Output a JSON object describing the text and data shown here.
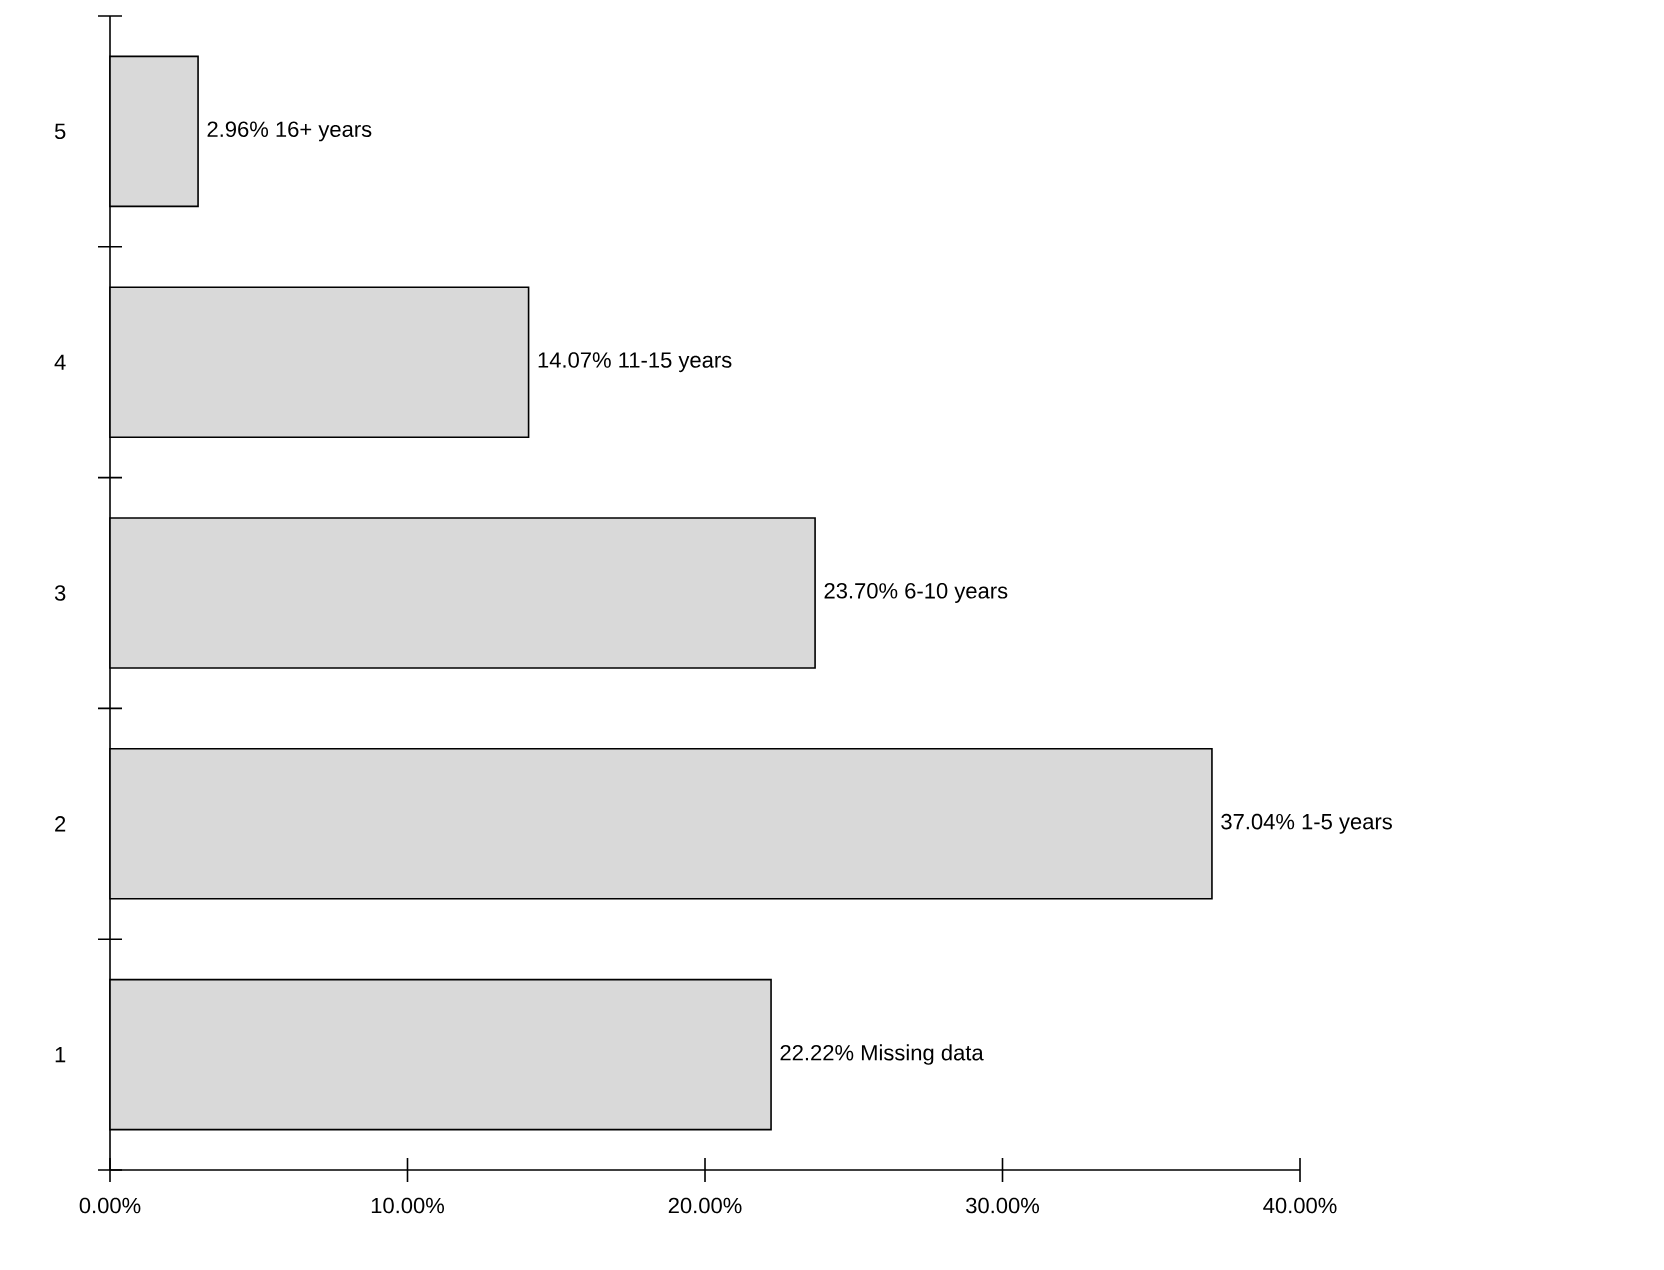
{
  "chart_data": {
    "type": "bar",
    "orientation": "horizontal",
    "categories": [
      "5",
      "4",
      "3",
      "2",
      "1"
    ],
    "values": [
      2.96,
      14.07,
      23.7,
      37.04,
      22.22
    ],
    "value_labels": [
      "2.96% 16+ years",
      "14.07% 11-15 years",
      "23.70% 6-10 years",
      "37.04% 1-5 years",
      "22.22% Missing data"
    ],
    "color": "#d9d9d9",
    "xlim": [
      0,
      40
    ],
    "xticks": [
      {
        "value": 0,
        "label": "0.00%"
      },
      {
        "value": 10,
        "label": "10.00%"
      },
      {
        "value": 20,
        "label": "20.00%"
      },
      {
        "value": 30,
        "label": "30.00%"
      },
      {
        "value": 40,
        "label": "40.00%"
      }
    ]
  }
}
